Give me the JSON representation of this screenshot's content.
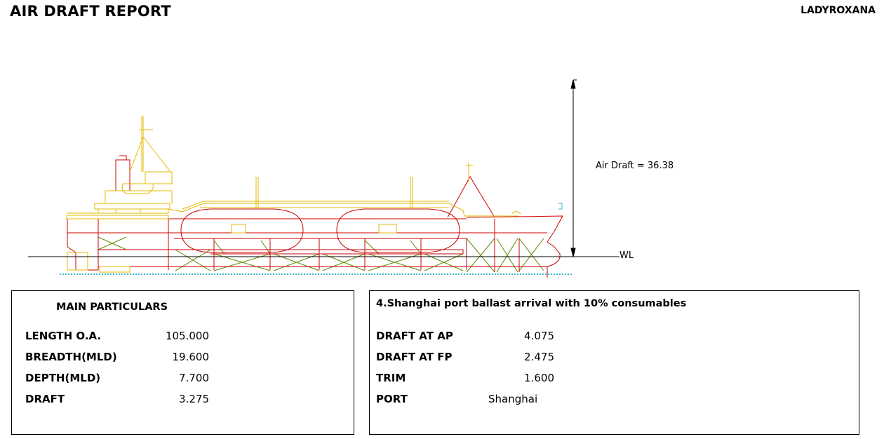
{
  "header": {
    "title": "AIR DRAFT REPORT",
    "ship_name": "LADYROXANA"
  },
  "drawing": {
    "air_draft_label": "Air Draft = 36.38",
    "wl_label": "WL",
    "colors": {
      "hull": "#cc0000",
      "deck": "#e6b800",
      "bracing": "#5a8a00",
      "line": "#000000"
    }
  },
  "main_particulars": {
    "title": "MAIN PARTICULARS",
    "rows": [
      {
        "label": "LENGTH O.A.",
        "value": "105.000"
      },
      {
        "label": "BREADTH(MLD)",
        "value": "19.600"
      },
      {
        "label": "DEPTH(MLD)",
        "value": "7.700"
      },
      {
        "label": "DRAFT",
        "value": "3.275"
      }
    ]
  },
  "condition": {
    "title": "4.Shanghai port ballast arrival with 10% consumables",
    "rows": [
      {
        "label": "DRAFT AT AP",
        "value": "4.075"
      },
      {
        "label": "DRAFT AT FP",
        "value": "2.475"
      },
      {
        "label": "TRIM",
        "value": "1.600"
      },
      {
        "label": "PORT",
        "value": "Shanghai"
      }
    ]
  }
}
